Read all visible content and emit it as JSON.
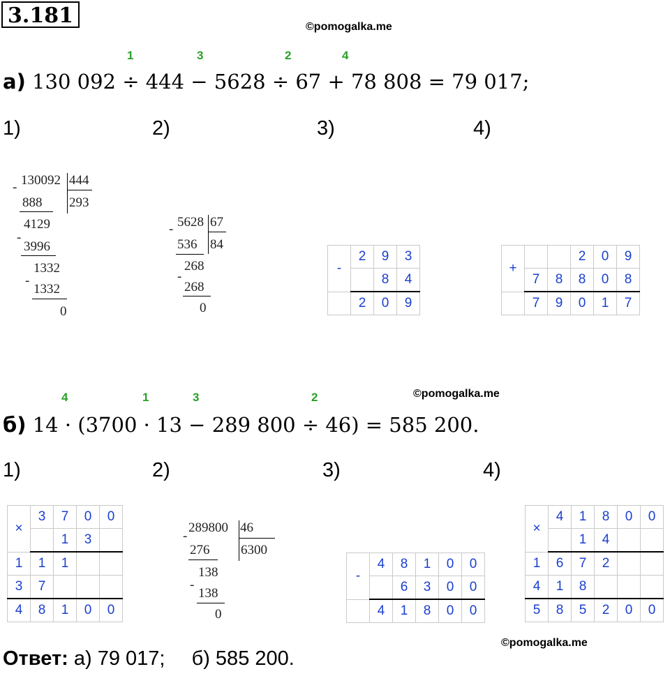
{
  "problem_number": "3.181",
  "watermark": "©pomogalka.me",
  "part_a": {
    "label": "а)",
    "expression": "130 092 ÷ 444 − 5628 ÷ 67 + 78 808 = 79 017;",
    "order_marks": [
      "1",
      "3",
      "2",
      "4"
    ],
    "steps": [
      "1)",
      "2)",
      "3)",
      "4)"
    ],
    "div1": {
      "dividend": "130092",
      "divisor": "444",
      "quotient": "293",
      "lines": [
        "888",
        "4129",
        "3996",
        "1332",
        "1332",
        "0"
      ]
    },
    "div2": {
      "dividend": "5628",
      "divisor": "67",
      "quotient": "84",
      "lines": [
        "536",
        "268",
        "268",
        "0"
      ]
    },
    "sub": {
      "sign": "-",
      "rows": [
        [
          "2",
          "9",
          "3"
        ],
        [
          "",
          "8",
          "4"
        ],
        [
          "2",
          "0",
          "9"
        ]
      ]
    },
    "add": {
      "sign": "+",
      "rows": [
        [
          "",
          "",
          "2",
          "0",
          "9"
        ],
        [
          "7",
          "8",
          "8",
          "0",
          "8"
        ],
        [
          "7",
          "9",
          "0",
          "1",
          "7"
        ]
      ]
    }
  },
  "part_b": {
    "label": "б)",
    "expression": "14 · (3700 · 13 − 289 800 ÷ 46) = 585 200.",
    "order_marks": [
      "4",
      "1",
      "3",
      "2"
    ],
    "steps": [
      "1)",
      "2)",
      "3)",
      "4)"
    ],
    "mul1": {
      "sign": "×",
      "rows": [
        [
          "3",
          "7",
          "0",
          "0",
          ""
        ],
        [
          "",
          "1",
          "3",
          "",
          ""
        ],
        [
          "1",
          "1",
          "1",
          "",
          ""
        ],
        [
          "3",
          "7",
          "",
          "",
          ""
        ],
        [
          "4",
          "8",
          "1",
          "0",
          "0"
        ]
      ]
    },
    "div": {
      "dividend": "289800",
      "divisor": "46",
      "quotient": "6300",
      "lines": [
        "276",
        "138",
        "138",
        "0"
      ]
    },
    "sub": {
      "sign": "-",
      "rows": [
        [
          "4",
          "8",
          "1",
          "0",
          "0"
        ],
        [
          "",
          "6",
          "3",
          "0",
          "0"
        ],
        [
          "4",
          "1",
          "8",
          "0",
          "0"
        ]
      ]
    },
    "mul2": {
      "sign": "×",
      "rows": [
        [
          "",
          "4",
          "1",
          "8",
          "0",
          "0"
        ],
        [
          "",
          "",
          "1",
          "4",
          "",
          ""
        ],
        [
          "1",
          "6",
          "7",
          "2",
          "",
          ""
        ],
        [
          "4",
          "1",
          "8",
          "",
          "",
          ""
        ],
        [
          "5",
          "8",
          "5",
          "2",
          "0",
          "0"
        ]
      ]
    }
  },
  "answer": {
    "label": "Ответ:",
    "a": "а) 79 017;",
    "b": "б) 585 200."
  }
}
